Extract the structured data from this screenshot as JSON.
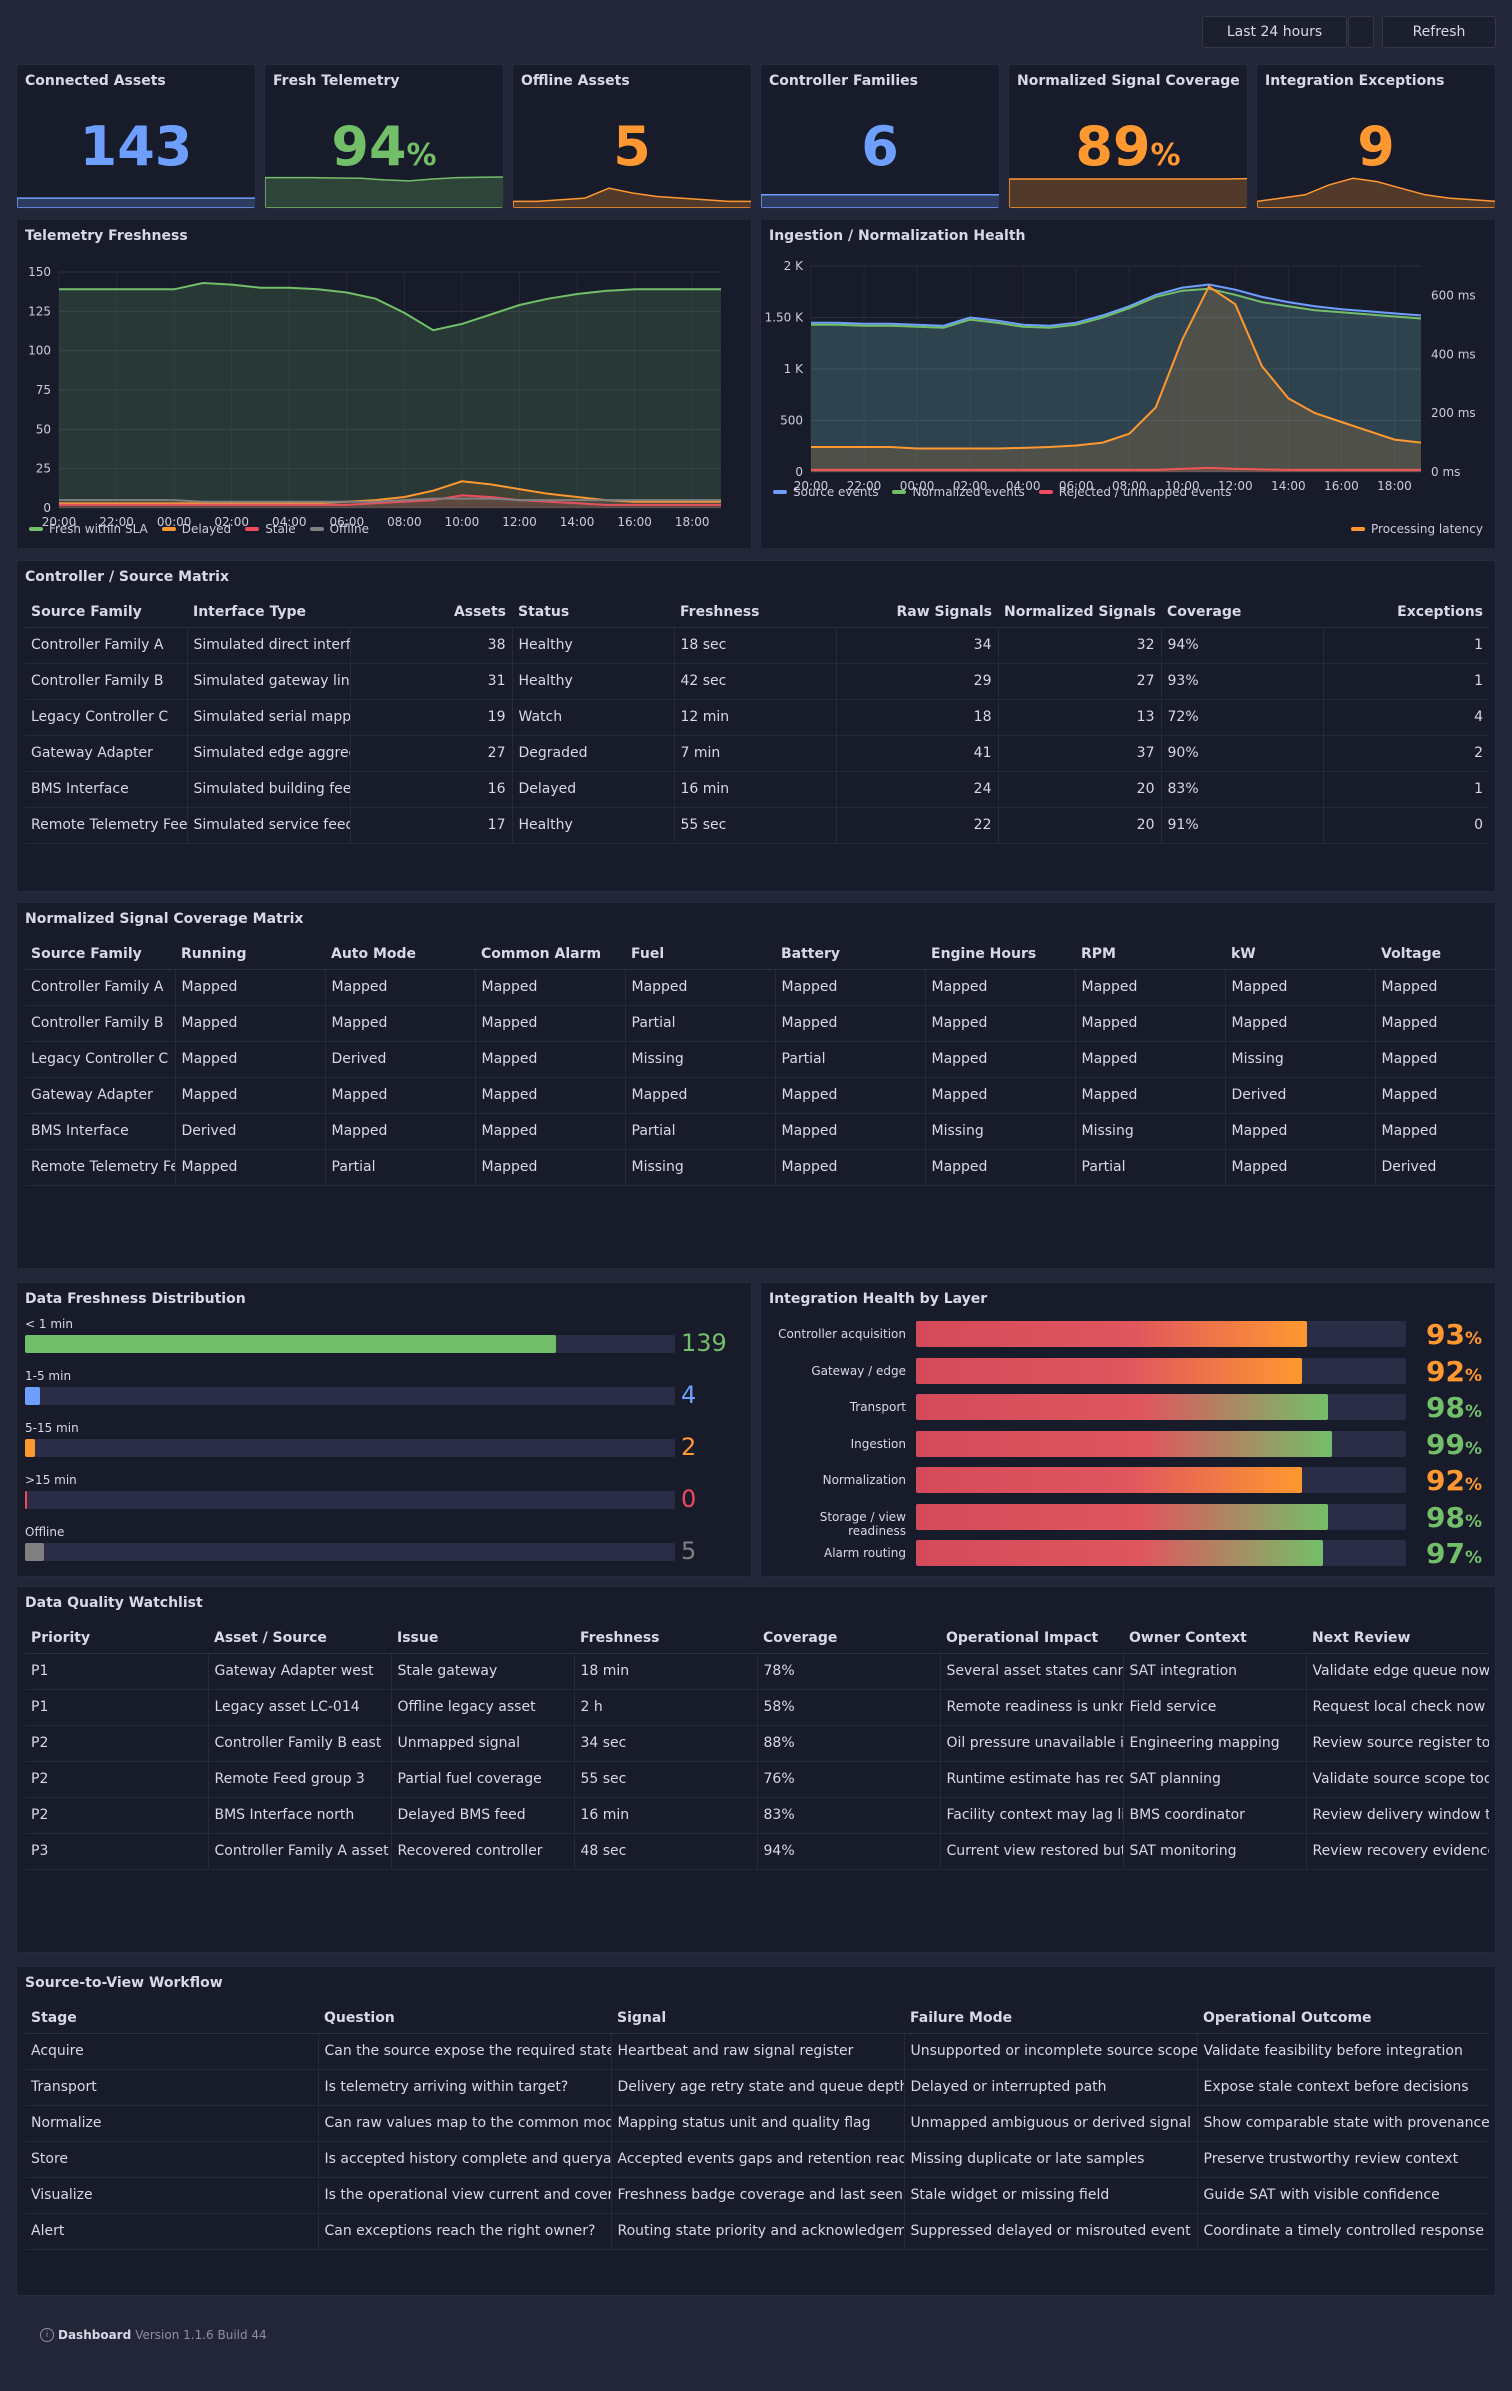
{
  "toolbar": {
    "time_range": "Last 24 hours",
    "refresh": "Refresh"
  },
  "stats": [
    {
      "title": "Connected Assets",
      "value": "143",
      "unit": "",
      "color": "#6e9fff",
      "spark": [
        0.3,
        0.3,
        0.3,
        0.3,
        0.3,
        0.3,
        0.3,
        0.3,
        0.3,
        0.3,
        0.3
      ]
    },
    {
      "title": "Fresh Telemetry",
      "value": "94",
      "unit": "%",
      "color": "#73bf69",
      "spark": [
        0.92,
        0.92,
        0.92,
        0.91,
        0.9,
        0.85,
        0.82,
        0.88,
        0.92,
        0.93,
        0.94
      ]
    },
    {
      "title": "Offline Assets",
      "value": "5",
      "unit": "",
      "color": "#ff9830",
      "spark": [
        0.2,
        0.2,
        0.25,
        0.3,
        0.6,
        0.45,
        0.35,
        0.3,
        0.25,
        0.2,
        0.2
      ]
    },
    {
      "title": "Controller Families",
      "value": "6",
      "unit": "",
      "color": "#6e9fff",
      "spark": [
        0.4,
        0.4,
        0.4,
        0.4,
        0.4,
        0.4,
        0.4,
        0.4,
        0.4,
        0.4,
        0.4
      ]
    },
    {
      "title": "Normalized Signal Coverage",
      "value": "89",
      "unit": "%",
      "color": "#ff9830",
      "spark": [
        0.88,
        0.88,
        0.88,
        0.88,
        0.88,
        0.88,
        0.88,
        0.88,
        0.88,
        0.88,
        0.89
      ]
    },
    {
      "title": "Integration Exceptions",
      "value": "9",
      "unit": "",
      "color": "#ff9830",
      "spark": [
        0.2,
        0.3,
        0.4,
        0.7,
        0.9,
        0.8,
        0.6,
        0.4,
        0.3,
        0.25,
        0.2
      ]
    }
  ],
  "telemetry": {
    "title": "Telemetry Freshness",
    "chart_data": {
      "type": "area",
      "x": [
        "20:00",
        "21:00",
        "22:00",
        "23:00",
        "00:00",
        "01:00",
        "02:00",
        "03:00",
        "04:00",
        "05:00",
        "06:00",
        "07:00",
        "08:00",
        "09:00",
        "10:00",
        "11:00",
        "12:00",
        "13:00",
        "14:00",
        "15:00",
        "16:00",
        "17:00",
        "18:00",
        "19:00"
      ],
      "xticks": [
        "20:00",
        "22:00",
        "00:00",
        "02:00",
        "04:00",
        "06:00",
        "08:00",
        "10:00",
        "12:00",
        "14:00",
        "16:00",
        "18:00"
      ],
      "ylim": [
        0,
        150
      ],
      "yticks": [
        0,
        25,
        50,
        75,
        100,
        125,
        150
      ],
      "series": [
        {
          "name": "Fresh within SLA",
          "color": "#73bf69",
          "values": [
            139,
            139,
            139,
            139,
            139,
            143,
            142,
            140,
            140,
            139,
            137,
            133,
            124,
            113,
            117,
            123,
            129,
            133,
            136,
            138,
            139,
            139,
            139,
            139
          ]
        },
        {
          "name": "Delayed",
          "color": "#ff9830",
          "values": [
            3,
            3,
            3,
            3,
            3,
            3,
            3,
            3,
            3,
            3,
            4,
            5,
            7,
            11,
            17,
            15,
            12,
            9,
            7,
            5,
            4,
            4,
            4,
            4
          ]
        },
        {
          "name": "Stale",
          "color": "#f2495c",
          "values": [
            2,
            2,
            2,
            2,
            2,
            2,
            2,
            2,
            2,
            2,
            2,
            3,
            4,
            5,
            8,
            7,
            5,
            4,
            3,
            2,
            2,
            2,
            2,
            2
          ]
        },
        {
          "name": "Offline",
          "color": "#808080",
          "values": [
            5,
            5,
            5,
            5,
            5,
            4,
            4,
            4,
            4,
            4,
            4,
            4,
            5,
            6,
            6,
            6,
            5,
            5,
            5,
            5,
            5,
            5,
            5,
            5
          ]
        }
      ]
    }
  },
  "ingestion": {
    "title": "Ingestion / Normalization Health",
    "chart_data": {
      "type": "line",
      "x": [
        "20:00",
        "21:00",
        "22:00",
        "23:00",
        "00:00",
        "01:00",
        "02:00",
        "03:00",
        "04:00",
        "05:00",
        "06:00",
        "07:00",
        "08:00",
        "09:00",
        "10:00",
        "11:00",
        "12:00",
        "13:00",
        "14:00",
        "15:00",
        "16:00",
        "17:00",
        "18:00",
        "19:00"
      ],
      "xticks": [
        "20:00",
        "22:00",
        "00:00",
        "02:00",
        "04:00",
        "06:00",
        "08:00",
        "10:00",
        "12:00",
        "14:00",
        "16:00",
        "18:00"
      ],
      "ylim": [
        0,
        2000
      ],
      "yticks": [
        "0",
        "500",
        "1 K",
        "1.50 K",
        "2 K"
      ],
      "y2lim": [
        0,
        700
      ],
      "y2ticks": [
        "0 ms",
        "200 ms",
        "400 ms",
        "600 ms"
      ],
      "series": [
        {
          "name": "Source events",
          "color": "#6e9fff",
          "axis": "left",
          "values": [
            1450,
            1450,
            1440,
            1440,
            1430,
            1420,
            1500,
            1470,
            1430,
            1420,
            1450,
            1520,
            1610,
            1720,
            1790,
            1820,
            1770,
            1700,
            1650,
            1610,
            1580,
            1560,
            1540,
            1520
          ]
        },
        {
          "name": "Normalized events",
          "color": "#73bf69",
          "axis": "left",
          "values": [
            1430,
            1430,
            1420,
            1420,
            1410,
            1400,
            1480,
            1450,
            1410,
            1400,
            1430,
            1500,
            1590,
            1700,
            1760,
            1780,
            1720,
            1650,
            1610,
            1570,
            1550,
            1530,
            1510,
            1490
          ]
        },
        {
          "name": "Rejected / unmapped events",
          "color": "#f2495c",
          "axis": "left",
          "values": [
            20,
            20,
            20,
            20,
            20,
            20,
            20,
            20,
            20,
            20,
            20,
            20,
            20,
            20,
            30,
            40,
            30,
            25,
            20,
            20,
            20,
            20,
            20,
            20
          ]
        },
        {
          "name": "Processing latency",
          "color": "#ff9830",
          "axis": "right",
          "values": [
            85,
            85,
            85,
            85,
            80,
            80,
            80,
            80,
            82,
            85,
            90,
            100,
            130,
            220,
            450,
            630,
            570,
            360,
            250,
            200,
            170,
            140,
            110,
            100
          ]
        }
      ]
    }
  },
  "matrix": {
    "title": "Controller / Source Matrix",
    "headers": [
      "Source Family",
      "Interface Type",
      "Assets",
      "Status",
      "Freshness",
      "Raw Signals",
      "Normalized Signals",
      "Coverage",
      "Exceptions"
    ],
    "rows": [
      [
        "Controller Family A",
        "Simulated direct interface",
        "38",
        "Healthy",
        "18 sec",
        "34",
        "32",
        "94%",
        "1"
      ],
      [
        "Controller Family B",
        "Simulated gateway link",
        "31",
        "Healthy",
        "42 sec",
        "29",
        "27",
        "93%",
        "1"
      ],
      [
        "Legacy Controller C",
        "Simulated serial mapping",
        "19",
        "Watch",
        "12 min",
        "18",
        "13",
        "72%",
        "4"
      ],
      [
        "Gateway Adapter",
        "Simulated edge aggregation",
        "27",
        "Degraded",
        "7 min",
        "41",
        "37",
        "90%",
        "2"
      ],
      [
        "BMS Interface",
        "Simulated building feed",
        "16",
        "Delayed",
        "16 min",
        "24",
        "20",
        "83%",
        "1"
      ],
      [
        "Remote Telemetry Feed",
        "Simulated service feed",
        "17",
        "Healthy",
        "55 sec",
        "22",
        "20",
        "91%",
        "0"
      ]
    ]
  },
  "coverage": {
    "title": "Normalized Signal Coverage Matrix",
    "headers": [
      "Source Family",
      "Running",
      "Auto Mode",
      "Common Alarm",
      "Fuel",
      "Battery",
      "Engine Hours",
      "RPM",
      "kW",
      "Voltage"
    ],
    "rows": [
      [
        "Controller Family A",
        "Mapped",
        "Mapped",
        "Mapped",
        "Mapped",
        "Mapped",
        "Mapped",
        "Mapped",
        "Mapped",
        "Mapped"
      ],
      [
        "Controller Family B",
        "Mapped",
        "Mapped",
        "Mapped",
        "Partial",
        "Mapped",
        "Mapped",
        "Mapped",
        "Mapped",
        "Mapped"
      ],
      [
        "Legacy Controller C",
        "Mapped",
        "Derived",
        "Mapped",
        "Missing",
        "Partial",
        "Mapped",
        "Mapped",
        "Missing",
        "Mapped"
      ],
      [
        "Gateway Adapter",
        "Mapped",
        "Mapped",
        "Mapped",
        "Mapped",
        "Mapped",
        "Mapped",
        "Mapped",
        "Derived",
        "Mapped"
      ],
      [
        "BMS Interface",
        "Derived",
        "Mapped",
        "Mapped",
        "Partial",
        "Mapped",
        "Missing",
        "Missing",
        "Mapped",
        "Mapped"
      ],
      [
        "Remote Telemetry Feed",
        "Mapped",
        "Partial",
        "Mapped",
        "Missing",
        "Mapped",
        "Mapped",
        "Partial",
        "Mapped",
        "Derived"
      ]
    ]
  },
  "distribution": {
    "title": "Data Freshness Distribution",
    "chart_data": {
      "type": "bar",
      "max": 170,
      "items": [
        {
          "label": "< 1 min",
          "value": 139,
          "color": "#73bf69"
        },
        {
          "label": "1-5 min",
          "value": 4,
          "color": "#6e9fff"
        },
        {
          "label": "5-15 min",
          "value": 2,
          "color": "#ff9830"
        },
        {
          "label": ">15 min",
          "value": 0,
          "color": "#f2495c"
        },
        {
          "label": "Offline",
          "value": 5,
          "color": "#808080"
        }
      ]
    }
  },
  "layers": {
    "title": "Integration Health by Layer",
    "chart_data": {
      "type": "bar",
      "items": [
        {
          "label": "Controller acquisition",
          "value": 93,
          "color": "#ff9830"
        },
        {
          "label": "Gateway / edge",
          "value": 92,
          "color": "#ff9830"
        },
        {
          "label": "Transport",
          "value": 98,
          "color": "#73bf69"
        },
        {
          "label": "Ingestion",
          "value": 99,
          "color": "#73bf69"
        },
        {
          "label": "Normalization",
          "value": 92,
          "color": "#ff9830"
        },
        {
          "label": "Storage / view readiness",
          "value": 98,
          "color": "#73bf69"
        },
        {
          "label": "Alarm routing",
          "value": 97,
          "color": "#73bf69"
        }
      ]
    }
  },
  "watchlist": {
    "title": "Data Quality Watchlist",
    "headers": [
      "Priority",
      "Asset / Source",
      "Issue",
      "Freshness",
      "Coverage",
      "Operational Impact",
      "Owner Context",
      "Next Review"
    ],
    "rows": [
      [
        "P1",
        "Gateway Adapter west",
        "Stale gateway",
        "18 min",
        "78%",
        "Several asset states cannot be trusted",
        "SAT integration",
        "Validate edge queue now"
      ],
      [
        "P1",
        "Legacy asset LC-014",
        "Offline legacy asset",
        "2 h",
        "58%",
        "Remote readiness is unknown",
        "Field service",
        "Request local check now"
      ],
      [
        "P2",
        "Controller Family B east",
        "Unmapped signal",
        "34 sec",
        "88%",
        "Oil pressure unavailable in view",
        "Engineering mapping",
        "Review source register today"
      ],
      [
        "P2",
        "Remote Feed group 3",
        "Partial fuel coverage",
        "55 sec",
        "76%",
        "Runtime estimate has reduced confidence",
        "SAT planning",
        "Validate source scope today"
      ],
      [
        "P2",
        "BMS Interface north",
        "Delayed BMS feed",
        "16 min",
        "83%",
        "Facility context may lag live state",
        "BMS coordinator",
        "Review delivery window today"
      ],
      [
        "P3",
        "Controller Family A asset 07",
        "Recovered controller",
        "48 sec",
        "94%",
        "Current view restored but history has gap",
        "SAT monitoring",
        "Review recovery evidence"
      ]
    ]
  },
  "workflow": {
    "title": "Source-to-View Workflow",
    "headers": [
      "Stage",
      "Question",
      "Signal",
      "Failure Mode",
      "Operational Outcome"
    ],
    "rows": [
      [
        "Acquire",
        "Can the source expose the required state?",
        "Heartbeat and raw signal register",
        "Unsupported or incomplete source scope",
        "Validate feasibility before integration"
      ],
      [
        "Transport",
        "Is telemetry arriving within target?",
        "Delivery age retry state and queue depth",
        "Delayed or interrupted path",
        "Expose stale context before decisions"
      ],
      [
        "Normalize",
        "Can raw values map to the common model?",
        "Mapping status unit and quality flag",
        "Unmapped ambiguous or derived signal",
        "Show comparable state with provenance"
      ],
      [
        "Store",
        "Is accepted history complete and queryable?",
        "Accepted events gaps and retention readiness",
        "Missing duplicate or late samples",
        "Preserve trustworthy review context"
      ],
      [
        "Visualize",
        "Is the operational view current and covered?",
        "Freshness badge coverage and last seen",
        "Stale widget or missing field",
        "Guide SAT with visible confidence"
      ],
      [
        "Alert",
        "Can exceptions reach the right owner?",
        "Routing state priority and acknowledgement",
        "Suppressed delayed or misrouted event",
        "Coordinate a timely controlled response"
      ]
    ]
  },
  "footer": {
    "product": "Dashboard",
    "version": "Version 1.1.6 Build 44"
  }
}
